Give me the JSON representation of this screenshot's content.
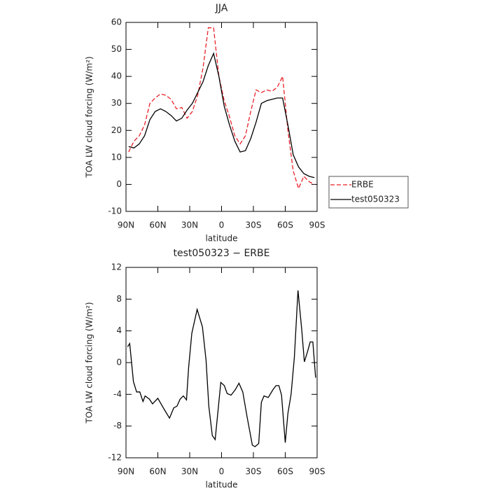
{
  "chart_data": [
    {
      "type": "line",
      "title": "JJA",
      "xlabel": "latitude",
      "ylabel": "TOA LW cloud forcing (W/m²)",
      "x": [
        87.5,
        82.5,
        77.5,
        72.5,
        67.5,
        62.5,
        57.5,
        52.5,
        47.5,
        42.5,
        37.5,
        32.5,
        27.5,
        22.5,
        17.5,
        12.5,
        7.5,
        2.5,
        -2.5,
        -7.5,
        -12.5,
        -17.5,
        -22.5,
        -27.5,
        -32.5,
        -37.5,
        -42.5,
        -47.5,
        -52.5,
        -57.5,
        -62.5,
        -67.5,
        -72.5,
        -77.5,
        -82.5,
        -87.5
      ],
      "series": [
        {
          "name": "ERBE",
          "color": "#e8222a",
          "linestyle": "dashed",
          "values": [
            12,
            16,
            18,
            22,
            30,
            32,
            33.5,
            33,
            31.5,
            28,
            28.5,
            24.5,
            27,
            33,
            43,
            58,
            58,
            40,
            31,
            25,
            18,
            15,
            18,
            27,
            35,
            34,
            35,
            34.5,
            36,
            40,
            20,
            5,
            -1.5,
            3,
            1,
            0
          ]
        },
        {
          "name": "test050323",
          "color": "#000000",
          "linestyle": "solid",
          "values": [
            14,
            13.5,
            15,
            18,
            24,
            27,
            28,
            27,
            25.5,
            23.5,
            24.5,
            27.5,
            30,
            34,
            38,
            44,
            48.5,
            40,
            29,
            22,
            16,
            12,
            12.5,
            17,
            23,
            30,
            31,
            31.5,
            32,
            32,
            22,
            11,
            6.5,
            4,
            3,
            2.5
          ]
        }
      ],
      "xlim": [
        90,
        -90
      ],
      "xticks": [
        {
          "value": 90,
          "label": "90N"
        },
        {
          "value": 60,
          "label": "60N"
        },
        {
          "value": 30,
          "label": "30N"
        },
        0,
        {
          "value": -30,
          "label": "30S"
        },
        {
          "value": -60,
          "label": "60S"
        },
        {
          "value": -90,
          "label": "90S"
        }
      ],
      "ylim": [
        -10,
        60
      ],
      "yticks": [
        -10,
        0,
        10,
        20,
        30,
        40,
        50,
        60
      ],
      "legend": "right"
    },
    {
      "type": "line",
      "title": "test050323 − ERBE",
      "xlabel": "latitude",
      "ylabel": "TOA LW cloud forcing (W/m²)",
      "x": [
        88.5,
        86.5,
        83,
        80,
        77,
        74,
        72,
        68,
        65,
        60,
        57,
        54,
        49,
        45,
        42,
        39,
        36,
        33,
        31,
        28,
        23,
        18,
        14.6,
        12,
        8.7,
        6,
        0.7,
        -2.6,
        -5.3,
        -9,
        -13,
        -16.4,
        -20,
        -24,
        -29,
        -31.5,
        -35,
        -37.5,
        -40,
        -44,
        -48.5,
        -51.3,
        -54,
        -56.5,
        -60,
        -62.5,
        -65.5,
        -68.6,
        -72,
        -75.5,
        -78,
        -80.8,
        -83.5,
        -86,
        -88.6
      ],
      "series": [
        {
          "color": "#000000",
          "linestyle": "solid",
          "values": [
            2,
            2.4,
            -2.4,
            -3.7,
            -3.7,
            -4.9,
            -4.2,
            -4.6,
            -5.2,
            -4.5,
            -5.2,
            -5.9,
            -7,
            -5.7,
            -5.5,
            -4.6,
            -4.2,
            -4.7,
            -0.6,
            3.7,
            6.7,
            4.5,
            0.3,
            -5.5,
            -9.2,
            -9.7,
            -2.5,
            -2.9,
            -3.9,
            -4.1,
            -3.4,
            -2.6,
            -3.7,
            -6.8,
            -10.4,
            -10.6,
            -10.2,
            -5,
            -4.2,
            -4.4,
            -3.4,
            -2.9,
            -2.9,
            -4.1,
            -10.1,
            -6.4,
            -4,
            0.7,
            9.1,
            4.2,
            0.1,
            1.3,
            2.6,
            2.6,
            -1.9
          ]
        }
      ],
      "xlim": [
        90,
        -90
      ],
      "xticks": [
        {
          "value": 90,
          "label": "90N"
        },
        {
          "value": 60,
          "label": "60N"
        },
        {
          "value": 30,
          "label": "30N"
        },
        0,
        {
          "value": -30,
          "label": "30S"
        },
        {
          "value": -60,
          "label": "60S"
        },
        {
          "value": -90,
          "label": "90S"
        }
      ],
      "ylim": [
        -12,
        12
      ],
      "yticks": [
        -12,
        -8,
        -4,
        0,
        4,
        8,
        12
      ]
    }
  ]
}
